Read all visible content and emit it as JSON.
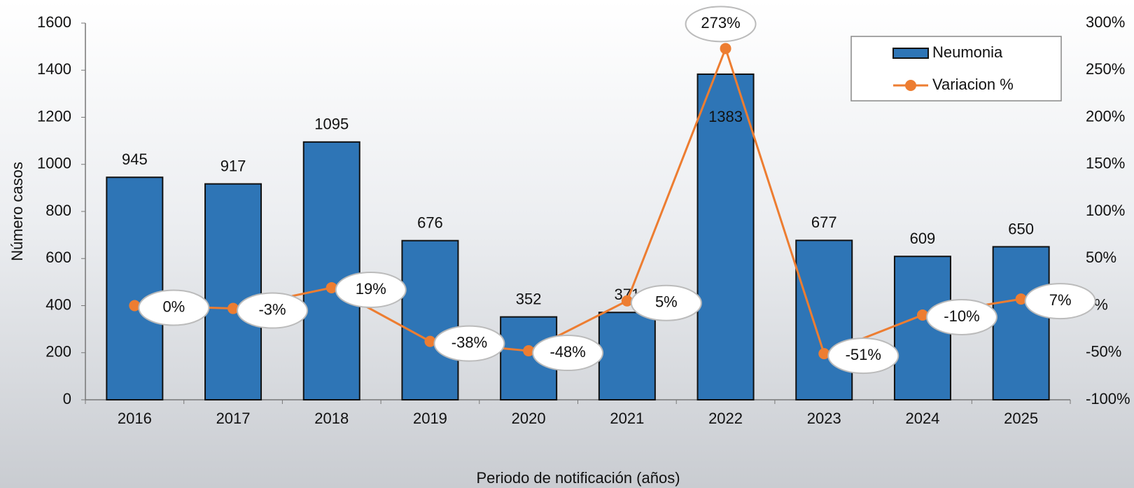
{
  "chart_data": {
    "type": "bar-line",
    "x_label": "Periodo de notificación (años)",
    "y_label": "Número casos",
    "categories": [
      "2016",
      "2017",
      "2018",
      "2019",
      "2020",
      "2021",
      "2022",
      "2023",
      "2024",
      "2025"
    ],
    "series": [
      {
        "name": "Neumonia",
        "type": "bar",
        "color": "#2e75b6",
        "values": [
          945,
          917,
          1095,
          676,
          352,
          371,
          1383,
          677,
          609,
          650
        ]
      },
      {
        "name": "Variacion %",
        "type": "line",
        "axis": "y2",
        "color": "#ed7d31",
        "values": [
          0,
          -3,
          19,
          -38,
          -48,
          5,
          273,
          -51,
          -10,
          7
        ],
        "value_labels": [
          "0%",
          "-3%",
          "19%",
          "-38%",
          "-48%",
          "5%",
          "273%",
          "-51%",
          "-10%",
          "7%"
        ]
      }
    ],
    "ylim": [
      0,
      1600
    ],
    "yticks": [
      0,
      200,
      400,
      600,
      800,
      1000,
      1200,
      1400,
      1600
    ],
    "y2lim": [
      -100,
      300
    ],
    "y2ticks": [
      {
        "value": -100,
        "label": "-100%"
      },
      {
        "value": -50,
        "label": "-50%"
      },
      {
        "value": 0,
        "label": "0%"
      },
      {
        "value": 50,
        "label": "50%"
      },
      {
        "value": 100,
        "label": "100%"
      },
      {
        "value": 150,
        "label": "150%"
      },
      {
        "value": 200,
        "label": "200%"
      },
      {
        "value": 250,
        "label": "250%"
      },
      {
        "value": 300,
        "label": "300%"
      }
    ],
    "legend": "upper right"
  }
}
